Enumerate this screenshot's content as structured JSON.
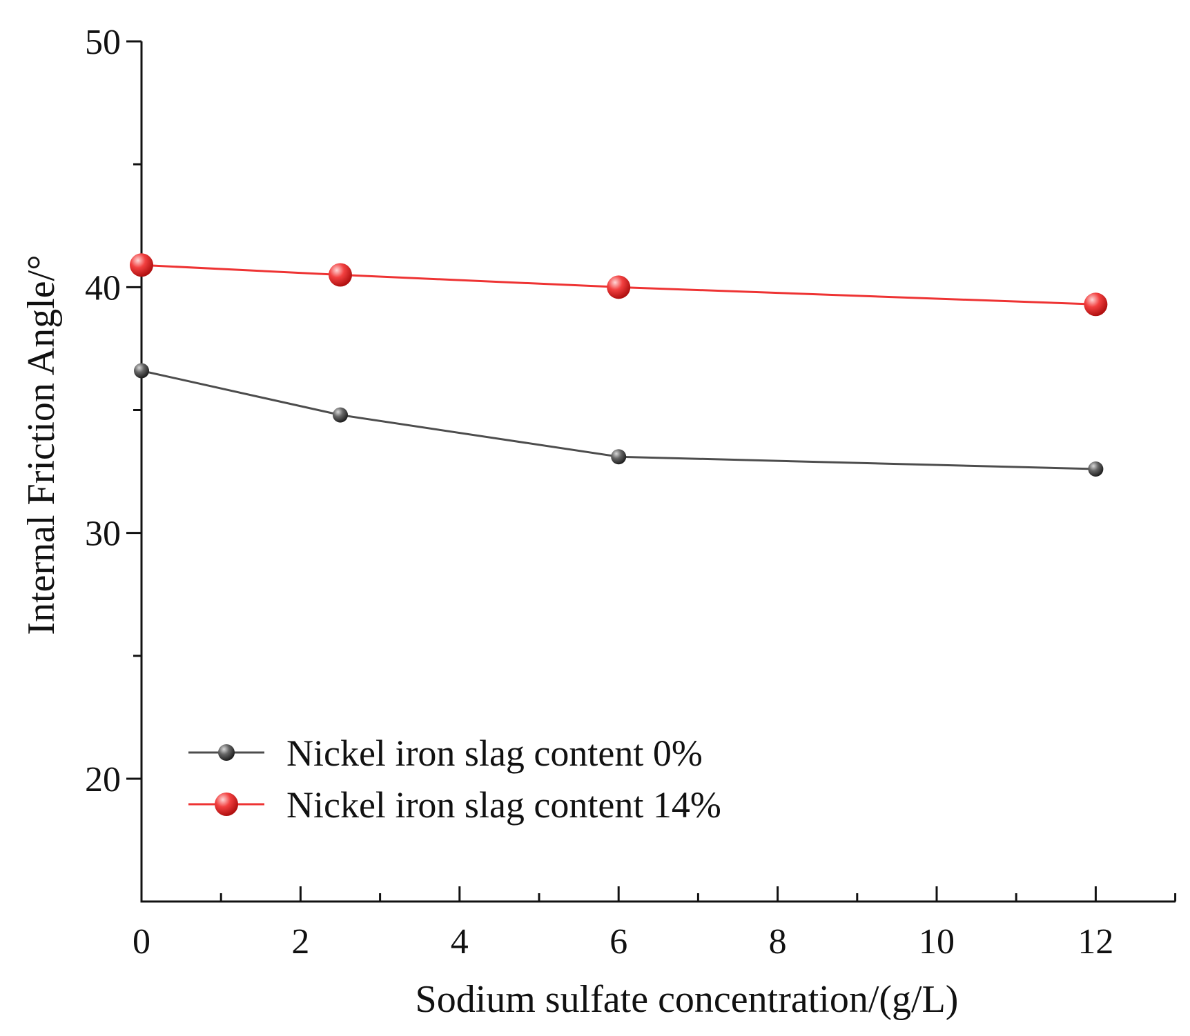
{
  "chart_data": {
    "type": "line",
    "title": "",
    "xlabel": "Sodium sulfate concentration/(g/L)",
    "ylabel": "Internal Friction Angle/°",
    "xlim": [
      0,
      13
    ],
    "ylim": [
      16.5,
      50
    ],
    "x_ticks": [
      0,
      2,
      4,
      6,
      8,
      10,
      12
    ],
    "x_tick_labels": [
      "0",
      "2",
      "4",
      "6",
      "8",
      "10",
      "12"
    ],
    "x_minor_ticks": [
      1,
      3,
      5,
      7,
      9,
      11,
      13
    ],
    "y_ticks": [
      20,
      30,
      40,
      50
    ],
    "y_tick_labels": [
      "20",
      "30",
      "40",
      "50"
    ],
    "y_minor_ticks": [
      25,
      35,
      45
    ],
    "grid": false,
    "legend_position": "bottom-left",
    "series": [
      {
        "name": "Nickel iron slag content 0%",
        "color": "#555555",
        "line_color": "#4d4d4d",
        "x": [
          0,
          2.5,
          6,
          12
        ],
        "values": [
          36.6,
          34.8,
          33.1,
          32.6
        ]
      },
      {
        "name": "Nickel iron slag content 14%",
        "color": "#ee3333",
        "line_color": "#ee3333",
        "x": [
          0,
          2.5,
          6,
          12
        ],
        "values": [
          40.9,
          40.5,
          40.0,
          39.3
        ]
      }
    ]
  }
}
